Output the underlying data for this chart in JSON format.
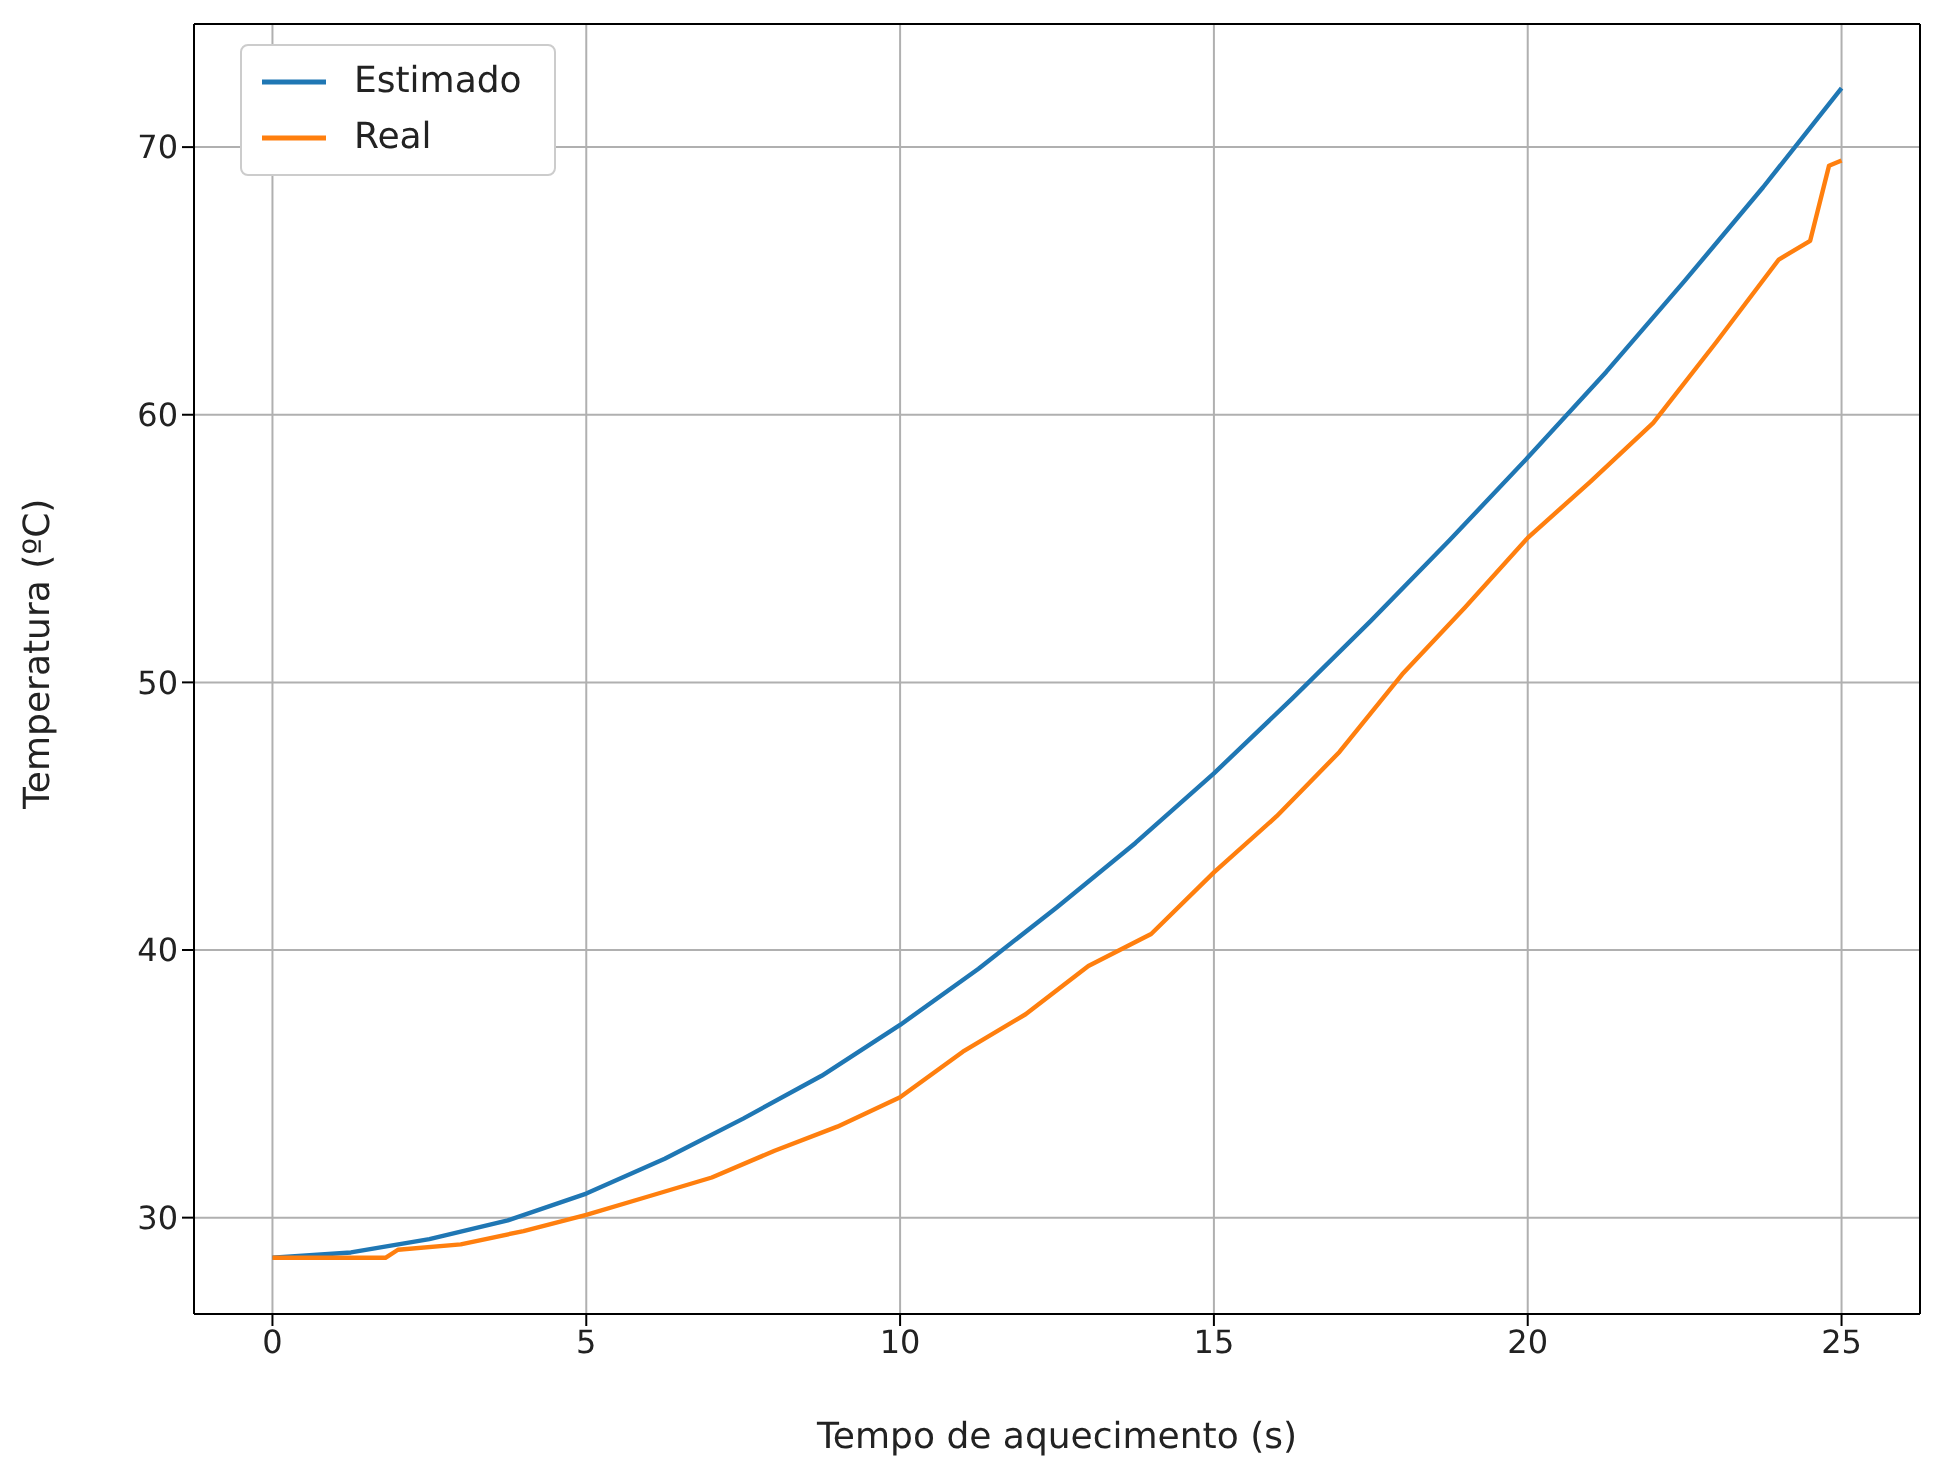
{
  "chart_data": {
    "type": "line",
    "xlabel": "Tempo de aquecimento (s)",
    "ylabel": "Temperatura (ºC)",
    "xlim": [
      -1.25,
      26.25
    ],
    "ylim": [
      26.4,
      74.6
    ],
    "xticks": [
      0,
      5,
      10,
      15,
      20,
      25
    ],
    "yticks": [
      30,
      40,
      50,
      60,
      70
    ],
    "grid": true,
    "legend": "top left",
    "marker": "none",
    "line_style": "solid",
    "series": [
      {
        "name": "Estimado",
        "color": "#1f77b4",
        "x": [
          0,
          1.25,
          2.5,
          3.75,
          5,
          6.25,
          7.5,
          8.75,
          10,
          11.25,
          12.5,
          13.75,
          15,
          16.25,
          17.5,
          18.75,
          20,
          21.25,
          22.5,
          23.75,
          25
        ],
        "values": [
          28.5,
          28.7,
          29.2,
          29.9,
          30.9,
          32.2,
          33.7,
          35.3,
          37.2,
          39.3,
          41.6,
          44.0,
          46.6,
          49.4,
          52.3,
          55.3,
          58.4,
          61.6,
          65.0,
          68.5,
          72.2
        ]
      },
      {
        "name": "Real",
        "color": "#ff7f0e",
        "x": [
          0,
          1,
          1.8,
          2,
          3,
          4,
          5,
          6,
          7,
          8,
          9,
          10,
          11,
          12,
          13,
          14,
          15,
          16,
          17,
          18,
          19,
          20,
          21,
          22,
          23,
          24,
          24.5,
          24.8,
          25
        ],
        "values": [
          28.5,
          28.5,
          28.5,
          28.8,
          29.0,
          29.5,
          30.1,
          30.8,
          31.5,
          32.5,
          33.4,
          34.5,
          36.2,
          37.6,
          39.4,
          40.6,
          42.9,
          45.0,
          47.4,
          50.3,
          52.8,
          55.4,
          57.5,
          59.7,
          62.7,
          65.8,
          66.5,
          69.3,
          69.5
        ]
      }
    ]
  }
}
